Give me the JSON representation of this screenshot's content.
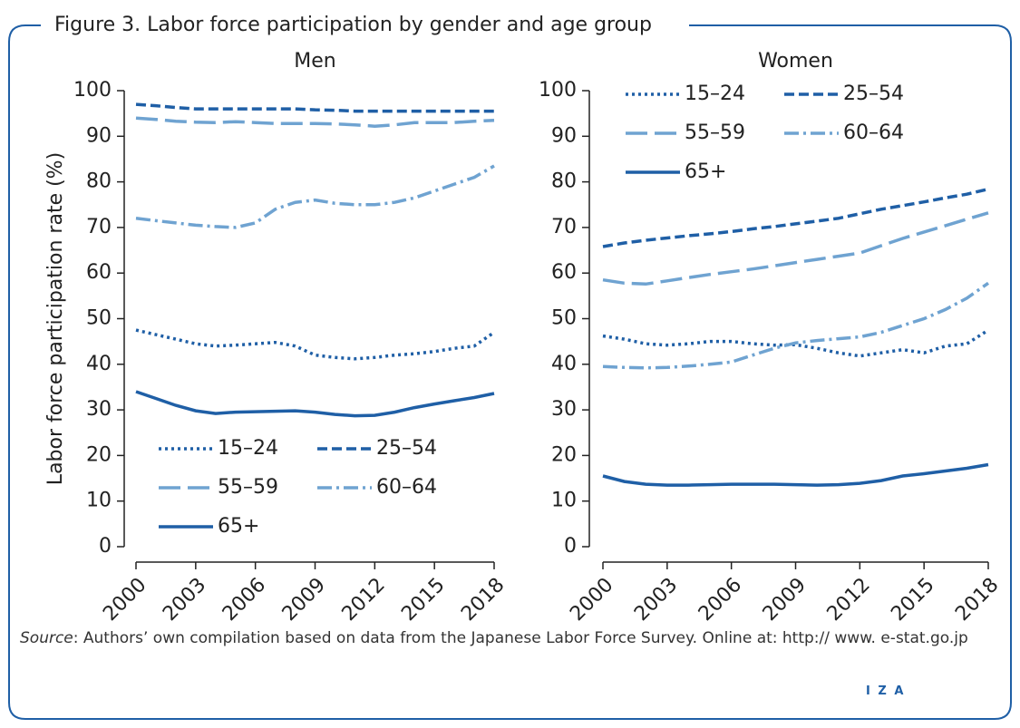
{
  "title": "Figure 3. Labor force participation by gender and age group",
  "source_label": "Source",
  "source_text": ": Authors’ own compilation based on data from the Japanese Labor Force Survey. Online at: http:// www. e-stat.go.jp",
  "logo": "I Z A",
  "chart_data": [
    {
      "type": "line",
      "title": "Men",
      "ylabel": "Labor force participation rate (%)",
      "x": [
        2000,
        2001,
        2002,
        2003,
        2004,
        2005,
        2006,
        2007,
        2008,
        2009,
        2010,
        2011,
        2012,
        2013,
        2014,
        2015,
        2016,
        2017,
        2018
      ],
      "xlim": [
        2000,
        2018
      ],
      "xticks": [
        2000,
        2003,
        2006,
        2009,
        2012,
        2015,
        2018
      ],
      "ylim": [
        0,
        100
      ],
      "yticks": [
        0,
        10,
        20,
        30,
        40,
        50,
        60,
        70,
        80,
        90,
        100
      ],
      "legend": "lower left",
      "series": [
        {
          "name": "15–24",
          "color": "#1f5fa6",
          "linestyle": "dotted",
          "values": [
            47.5,
            46.5,
            45.5,
            44.5,
            44,
            44.2,
            44.5,
            44.8,
            44,
            42,
            41.5,
            41.2,
            41.5,
            42,
            42.3,
            42.8,
            43.5,
            44,
            47
          ]
        },
        {
          "name": "25–54",
          "color": "#1f5fa6",
          "linestyle": "dashed",
          "values": [
            97,
            96.7,
            96.3,
            96,
            96,
            96,
            96,
            96,
            96,
            95.8,
            95.7,
            95.5,
            95.5,
            95.5,
            95.5,
            95.5,
            95.5,
            95.5,
            95.5
          ]
        },
        {
          "name": "55–59",
          "color": "#6fa3d1",
          "linestyle": "longdash",
          "values": [
            94,
            93.7,
            93.3,
            93.1,
            93,
            93.2,
            93,
            92.8,
            92.8,
            92.8,
            92.7,
            92.5,
            92.2,
            92.5,
            93,
            93,
            93,
            93.3,
            93.5
          ]
        },
        {
          "name": "60–64",
          "color": "#6fa3d1",
          "linestyle": "dashdot",
          "values": [
            72,
            71.5,
            71,
            70.5,
            70.2,
            70,
            71,
            74,
            75.5,
            76,
            75.3,
            75,
            75,
            75.5,
            76.5,
            78,
            79.5,
            81,
            83.5
          ]
        },
        {
          "name": "65+",
          "color": "#1f5fa6",
          "linestyle": "solid",
          "values": [
            34,
            32.5,
            31,
            29.8,
            29.2,
            29.5,
            29.6,
            29.7,
            29.8,
            29.5,
            29,
            28.7,
            28.8,
            29.5,
            30.5,
            31.3,
            32,
            32.7,
            33.6
          ]
        }
      ]
    },
    {
      "type": "line",
      "title": "Women",
      "x": [
        2000,
        2001,
        2002,
        2003,
        2004,
        2005,
        2006,
        2007,
        2008,
        2009,
        2010,
        2011,
        2012,
        2013,
        2014,
        2015,
        2016,
        2017,
        2018
      ],
      "xlim": [
        2000,
        2018
      ],
      "xticks": [
        2000,
        2003,
        2006,
        2009,
        2012,
        2015,
        2018
      ],
      "ylim": [
        0,
        100
      ],
      "yticks": [
        0,
        10,
        20,
        30,
        40,
        50,
        60,
        70,
        80,
        90,
        100
      ],
      "legend": "upper left",
      "series": [
        {
          "name": "15–24",
          "color": "#1f5fa6",
          "linestyle": "dotted",
          "values": [
            46.2,
            45.5,
            44.5,
            44.2,
            44.5,
            45,
            45,
            44.5,
            44.2,
            44.3,
            43.5,
            42.5,
            41.8,
            42.5,
            43.2,
            42.5,
            44,
            44.5,
            47.5
          ]
        },
        {
          "name": "25–54",
          "color": "#1f5fa6",
          "linestyle": "dashed",
          "values": [
            65.8,
            66.6,
            67.2,
            67.7,
            68.2,
            68.6,
            69.1,
            69.7,
            70.2,
            70.8,
            71.4,
            72,
            73,
            74,
            74.8,
            75.6,
            76.5,
            77.3,
            78.4
          ]
        },
        {
          "name": "55–59",
          "color": "#6fa3d1",
          "linestyle": "longdash",
          "values": [
            58.5,
            57.8,
            57.6,
            58.3,
            59,
            59.7,
            60.3,
            60.9,
            61.6,
            62.3,
            63,
            63.7,
            64.4,
            66,
            67.6,
            69,
            70.4,
            71.8,
            73.2
          ]
        },
        {
          "name": "60–64",
          "color": "#6fa3d1",
          "linestyle": "dashdot",
          "values": [
            39.5,
            39.3,
            39.2,
            39.3,
            39.6,
            40,
            40.5,
            42,
            43.5,
            44.7,
            45.2,
            45.6,
            46,
            47,
            48.5,
            50,
            52,
            54.5,
            57.8
          ]
        },
        {
          "name": "65+",
          "color": "#1f5fa6",
          "linestyle": "solid",
          "values": [
            15.5,
            14.3,
            13.7,
            13.5,
            13.5,
            13.6,
            13.7,
            13.7,
            13.7,
            13.6,
            13.5,
            13.6,
            13.9,
            14.5,
            15.5,
            16,
            16.6,
            17.2,
            18
          ]
        }
      ]
    }
  ]
}
